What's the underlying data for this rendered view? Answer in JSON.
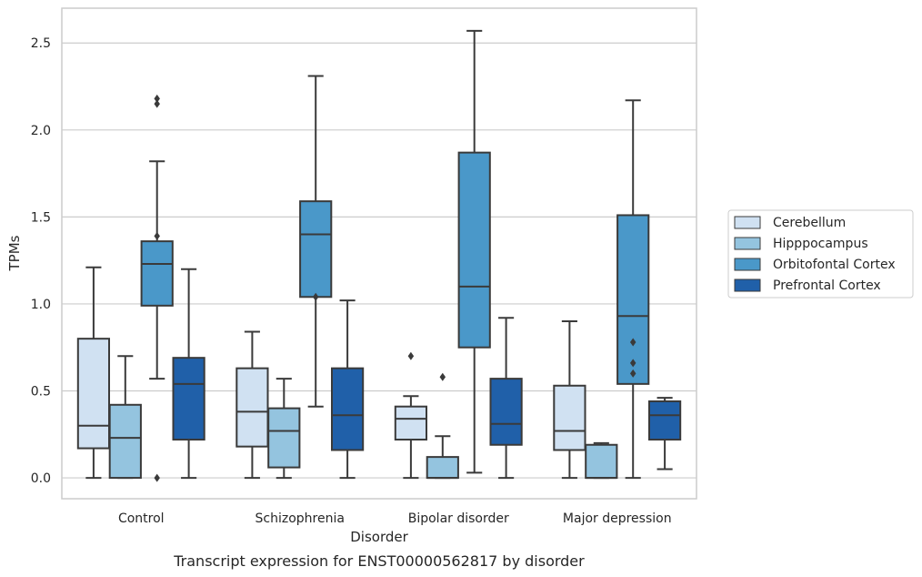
{
  "chart_data": {
    "type": "box",
    "caption": "Transcript expression for ENST00000562817 by disorder",
    "xlabel": "Disorder",
    "ylabel": "TPMs",
    "ylim": [
      -0.12,
      2.7
    ],
    "yticks": [
      0.0,
      0.5,
      1.0,
      1.5,
      2.0,
      2.5
    ],
    "ytick_labels": [
      "0.0",
      "0.5",
      "1.0",
      "1.5",
      "2.0",
      "2.5"
    ],
    "grid": "horizontal",
    "legend_placement": "center-right",
    "categories": [
      "Control",
      "Schizophrenia",
      "Bipolar disorder",
      "Major depression"
    ],
    "series": [
      {
        "name": "Cerebellum",
        "color": "#d0e1f2",
        "boxes": [
          {
            "whislo": 0.0,
            "q1": 0.17,
            "med": 0.3,
            "q3": 0.8,
            "whishi": 1.21,
            "fliers": []
          },
          {
            "whislo": 0.0,
            "q1": 0.18,
            "med": 0.38,
            "q3": 0.63,
            "whishi": 0.84,
            "fliers": []
          },
          {
            "whislo": 0.0,
            "q1": 0.22,
            "med": 0.34,
            "q3": 0.41,
            "whishi": 0.47,
            "fliers": [
              0.7
            ]
          },
          {
            "whislo": 0.0,
            "q1": 0.16,
            "med": 0.27,
            "q3": 0.53,
            "whishi": 0.9,
            "fliers": []
          }
        ]
      },
      {
        "name": "Hipppocampus",
        "color": "#94c4df",
        "boxes": [
          {
            "whislo": 0.0,
            "q1": 0.0,
            "med": 0.23,
            "q3": 0.42,
            "whishi": 0.7,
            "fliers": []
          },
          {
            "whislo": 0.0,
            "q1": 0.06,
            "med": 0.27,
            "q3": 0.4,
            "whishi": 0.57,
            "fliers": []
          },
          {
            "whislo": 0.0,
            "q1": 0.0,
            "med": 0.0,
            "q3": 0.12,
            "whishi": 0.24,
            "fliers": [
              0.58
            ]
          },
          {
            "whislo": 0.0,
            "q1": 0.0,
            "med": 0.0,
            "q3": 0.19,
            "whishi": 0.2,
            "fliers": []
          }
        ]
      },
      {
        "name": "Orbitofontal Cortex",
        "color": "#4a98c9",
        "boxes": [
          {
            "whislo": 0.57,
            "q1": 0.99,
            "med": 1.23,
            "q3": 1.36,
            "whishi": 1.82,
            "fliers": [
              0.0,
              2.15,
              2.18,
              1.39
            ]
          },
          {
            "whislo": 0.41,
            "q1": 1.04,
            "med": 1.4,
            "q3": 1.59,
            "whishi": 2.31,
            "fliers": [
              1.04
            ]
          },
          {
            "whislo": 0.03,
            "q1": 0.75,
            "med": 1.1,
            "q3": 1.87,
            "whishi": 2.57,
            "fliers": []
          },
          {
            "whislo": 0.0,
            "q1": 0.54,
            "med": 0.93,
            "q3": 1.51,
            "whishi": 2.17,
            "fliers": [
              0.6,
              0.66,
              0.78
            ]
          }
        ]
      },
      {
        "name": "Prefrontal Cortex",
        "color": "#2060a9",
        "boxes": [
          {
            "whislo": 0.0,
            "q1": 0.22,
            "med": 0.54,
            "q3": 0.69,
            "whishi": 1.2,
            "fliers": []
          },
          {
            "whislo": 0.0,
            "q1": 0.16,
            "med": 0.36,
            "q3": 0.63,
            "whishi": 1.02,
            "fliers": []
          },
          {
            "whislo": 0.0,
            "q1": 0.19,
            "med": 0.31,
            "q3": 0.57,
            "whishi": 0.92,
            "fliers": []
          },
          {
            "whislo": 0.05,
            "q1": 0.22,
            "med": 0.36,
            "q3": 0.44,
            "whishi": 0.46,
            "fliers": []
          }
        ]
      }
    ]
  }
}
